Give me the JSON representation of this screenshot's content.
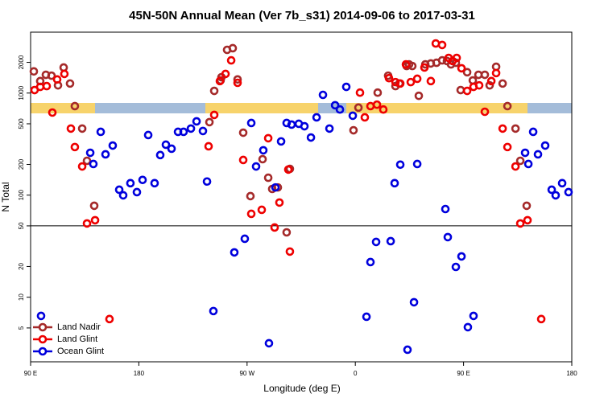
{
  "chart_data": {
    "type": "scatter",
    "title": "45N-50N Annual Mean (Ver 7b_s31)   2014-09-06 to 2017-03-31",
    "xlabel": "Longitude (deg E)",
    "ylabel": "N Total",
    "xlim": [
      90,
      540
    ],
    "xticks": [
      {
        "value": 90,
        "label": "90 E"
      },
      180,
      {
        "value": 270,
        "label": "90 W"
      },
      {
        "value": 360,
        "label": "0"
      },
      {
        "value": 450,
        "label": "90 E"
      },
      {
        "value": 540,
        "label": "180"
      }
    ],
    "ylim": [
      2.33,
      3950
    ],
    "ylog": true,
    "yticks": [
      5,
      10,
      20,
      50,
      100,
      200,
      500,
      1000,
      2000
    ],
    "hline": 50,
    "legend": "bottom-left",
    "series": [
      {
        "name": "Land Nadir",
        "color": "#a52a2a",
        "x": [
          92.7,
          98.0,
          102.7,
          107.4,
          112.8,
          117.5,
          122.8,
          126.8,
          132.9,
          136.9,
          142.9,
          238.7,
          242.7,
          248.0,
          248.7,
          253.4,
          258.1,
          262.1,
          266.8,
          272.8,
          282.9,
          287.6,
          290.9,
          295.6,
          302.9,
          305.6,
          358.5,
          362.6,
          378.6,
          387.3,
          393.4,
          396.7,
          402.7,
          404.7,
          407.4,
          412.8,
          418.2,
          422.8,
          427.5,
          432.2,
          436.2,
          439.6,
          443.6,
          447.6,
          453.0,
          457.7,
          462.4,
          467.7,
          471.7,
          477.1,
          482.5,
          486.5,
          493.2,
          497.2,
          502.5
        ],
        "values": [
          1630,
          1310,
          1510,
          1480,
          1190,
          1780,
          1240,
          745,
          449,
          217,
          78.7,
          519,
          1050,
          1330,
          1430,
          2650,
          2750,
          1360,
          409,
          97.8,
          225,
          148,
          115,
          119,
          43.2,
          181,
          432,
          720,
          1010,
          1480,
          1170,
          1240,
          1840,
          1910,
          1840,
          940,
          1910,
          1950,
          1980,
          2090,
          2060,
          1910,
          1980,
          1070,
          1600,
          1330,
          1510,
          1510,
          1190,
          1810,
          1240,
          745,
          449,
          217,
          78.7
        ]
      },
      {
        "name": "Land Glint",
        "color": "#ee0000",
        "x": [
          93.3,
          98.0,
          103.4,
          108.1,
          112.1,
          118.1,
          123.5,
          126.8,
          132.9,
          136.9,
          143.6,
          155.6,
          238.0,
          242.7,
          247.4,
          252.1,
          256.8,
          262.1,
          266.8,
          273.5,
          282.2,
          287.6,
          292.9,
          296.9,
          304.3,
          305.6,
          363.9,
          367.9,
          372.6,
          378.0,
          383.3,
          388.0,
          393.4,
          397.4,
          402.1,
          406.1,
          411.5,
          417.5,
          422.8,
          426.9,
          432.2,
          437.6,
          440.9,
          444.3,
          448.3,
          453.0,
          458.3,
          463.0,
          467.7,
          473.1,
          477.1,
          482.5,
          486.5,
          493.2,
          497.2,
          503.2,
          514.6
        ],
        "values": [
          1070,
          1150,
          1170,
          644,
          1360,
          1540,
          449,
          296,
          191,
          52.8,
          56.8,
          6.11,
          301,
          611,
          1310,
          1540,
          2090,
          1260,
          221,
          65.6,
          71.8,
          361,
          48.2,
          84.6,
          178,
          28.0,
          1010,
          578,
          745,
          770,
          690,
          1400,
          1280,
          1240,
          1910,
          1280,
          1380,
          1780,
          1310,
          3060,
          2960,
          2210,
          2060,
          2210,
          1750,
          1050,
          1150,
          1190,
          656,
          1310,
          1570,
          449,
          296,
          191,
          52.8,
          56.8,
          6.11
        ]
      },
      {
        "name": "Ocean Glint",
        "color": "#0000dd",
        "x": [
          98.7,
          139.6,
          142.2,
          148.3,
          152.3,
          158.3,
          163.7,
          167.0,
          173.0,
          178.4,
          183.1,
          187.8,
          193.1,
          197.8,
          202.5,
          207.2,
          212.6,
          217.2,
          223.3,
          228.0,
          233.3,
          236.7,
          242.0,
          259.4,
          268.1,
          273.5,
          277.5,
          283.5,
          288.2,
          293.6,
          298.3,
          302.9,
          307.0,
          313.0,
          317.7,
          323.1,
          327.8,
          333.1,
          338.5,
          343.2,
          347.2,
          352.5,
          357.9,
          369.3,
          372.6,
          377.3,
          389.4,
          392.7,
          397.4,
          403.4,
          408.8,
          411.5,
          434.9,
          436.9,
          443.6,
          448.3,
          453.6,
          458.3,
          501.2,
          503.9,
          507.9,
          511.9,
          517.9,
          523.3,
          526.6,
          532.0,
          537.3
        ],
        "values": [
          6.56,
          260,
          202,
          417,
          251,
          306,
          113,
          99.6,
          131,
          107,
          141,
          388,
          131,
          247,
          312,
          285,
          417,
          417,
          449,
          528,
          425,
          136,
          7.32,
          27.5,
          37.4,
          509,
          191,
          275,
          3.54,
          119,
          336,
          509,
          491,
          500,
          473,
          367,
          578,
          960,
          449,
          760,
          690,
          1150,
          600,
          6.44,
          22.1,
          34.8,
          35.4,
          131,
          199,
          3.06,
          8.93,
          202,
          73.1,
          38.8,
          19.8,
          25.1,
          5.09,
          6.56,
          260,
          202,
          417,
          251,
          306,
          113,
          99.6,
          131,
          107
        ]
      }
    ]
  }
}
